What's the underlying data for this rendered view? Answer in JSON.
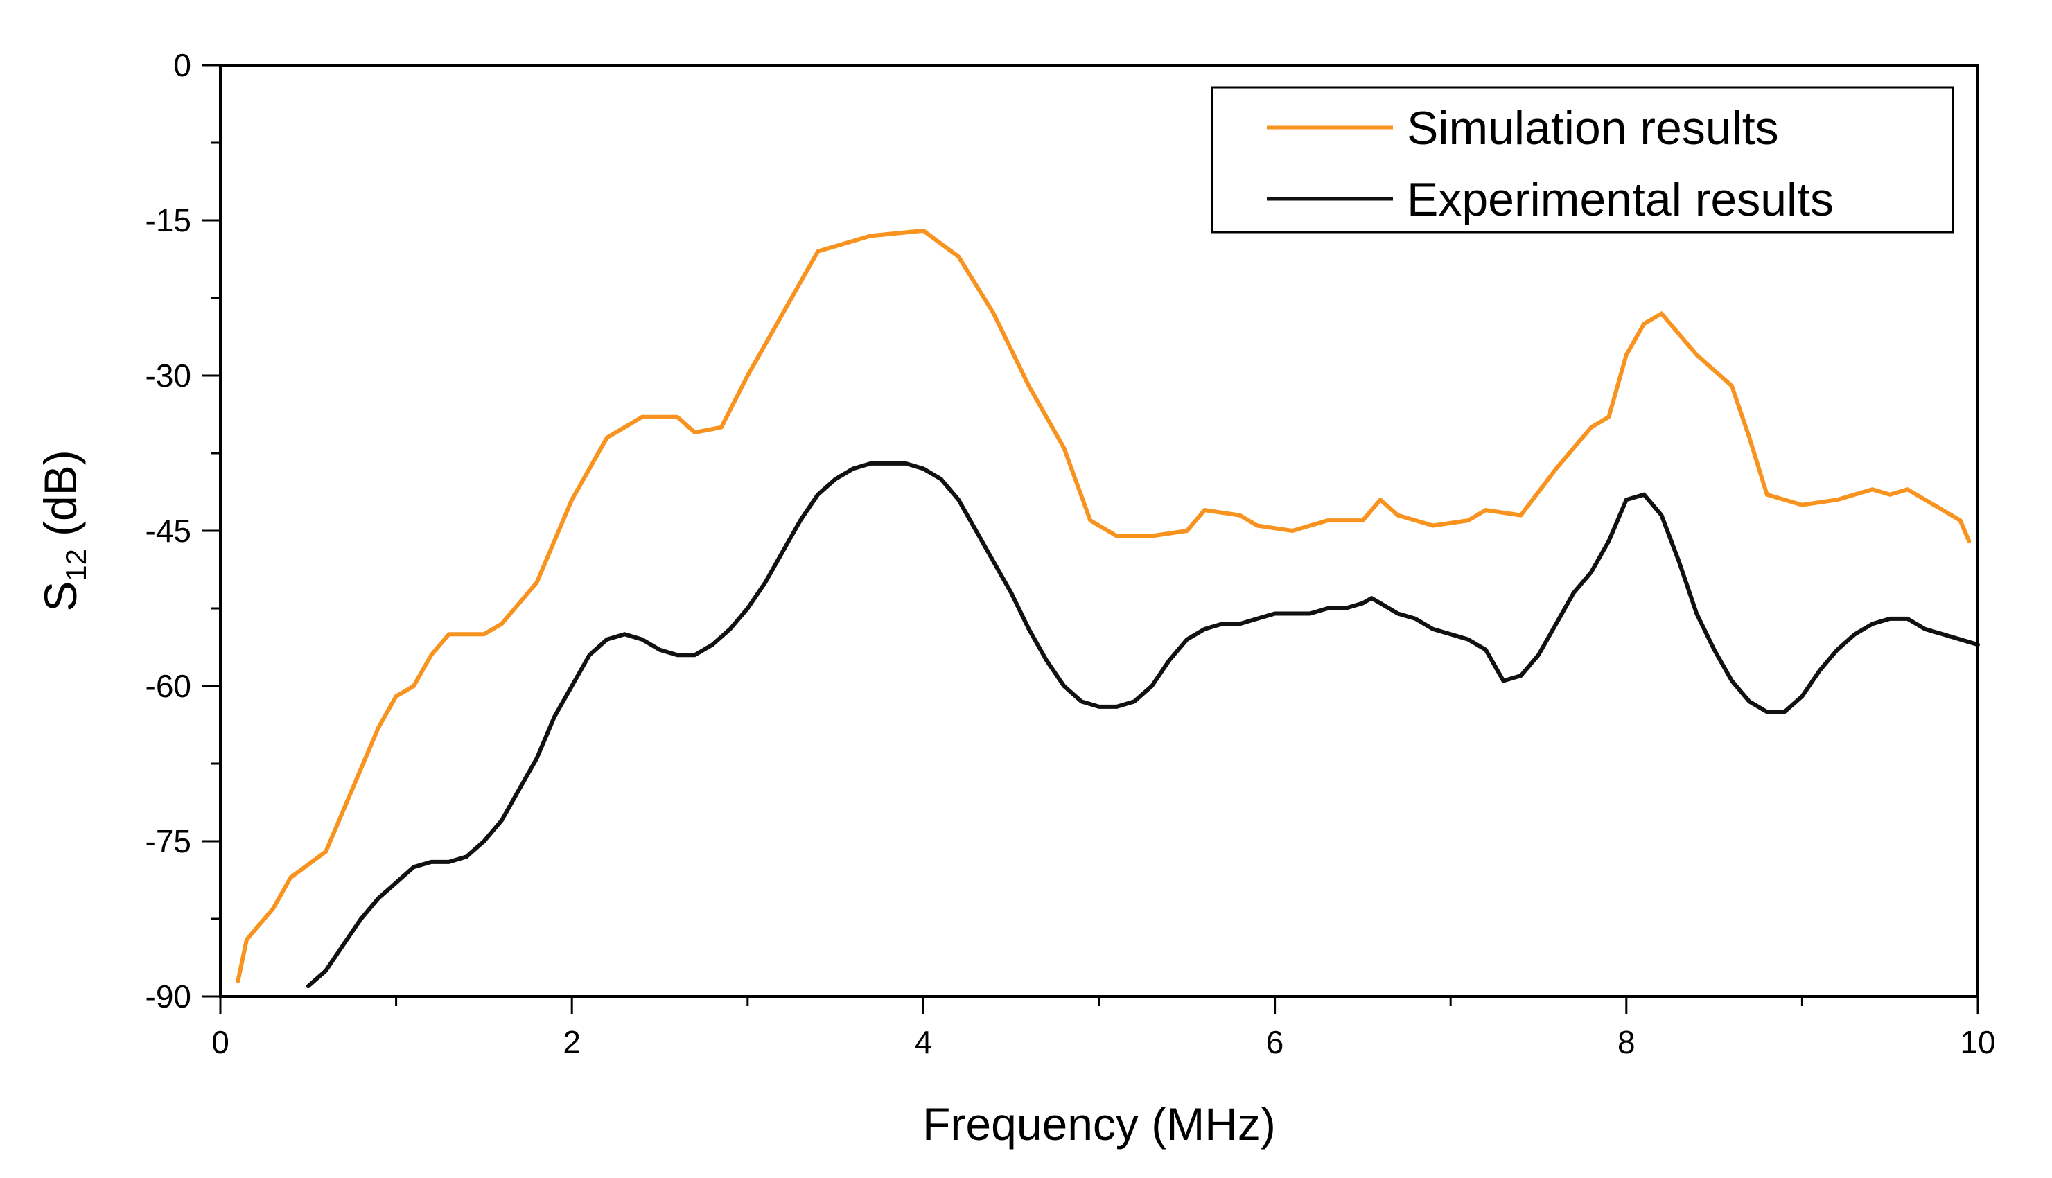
{
  "chart_data": {
    "type": "line",
    "title": "",
    "xlabel": "Frequency (MHz)",
    "ylabel": {
      "main": "S",
      "subscript": "12",
      "unit": "(dB)"
    },
    "xlim": [
      0,
      10
    ],
    "ylim": [
      -90,
      0
    ],
    "x_ticks": [
      0,
      2,
      4,
      6,
      8,
      10
    ],
    "x_tick_labels": [
      "0",
      "2",
      "4",
      "6",
      "8",
      "10"
    ],
    "y_ticks": [
      0,
      -15,
      -30,
      -45,
      -60,
      -75,
      -90
    ],
    "y_tick_labels": [
      "0",
      "-15",
      "-30",
      "-45",
      "-60",
      "-75",
      "-90"
    ],
    "x_minor_step": 1,
    "y_minor_step": 7.5,
    "grid": false,
    "legend_position": "top-right",
    "series": [
      {
        "name": "Simulation results",
        "color": "#F7931E",
        "x": [
          0.1,
          0.15,
          0.3,
          0.4,
          0.6,
          0.7,
          0.9,
          1.0,
          1.1,
          1.2,
          1.3,
          1.5,
          1.6,
          1.8,
          2.0,
          2.2,
          2.4,
          2.6,
          2.7,
          2.85,
          3.0,
          3.2,
          3.4,
          3.7,
          4.0,
          4.2,
          4.4,
          4.6,
          4.8,
          4.95,
          5.1,
          5.3,
          5.5,
          5.6,
          5.8,
          5.9,
          6.1,
          6.3,
          6.5,
          6.6,
          6.7,
          6.9,
          7.1,
          7.2,
          7.4,
          7.6,
          7.8,
          7.9,
          8.0,
          8.1,
          8.2,
          8.3,
          8.4,
          8.6,
          8.7,
          8.8,
          9.0,
          9.2,
          9.4,
          9.5,
          9.6,
          9.8,
          9.9,
          9.95
        ],
        "values": [
          -88.5,
          -84.5,
          -81.5,
          -78.5,
          -76,
          -72,
          -64,
          -61,
          -60,
          -57,
          -55,
          -55,
          -54,
          -50,
          -42,
          -36,
          -34,
          -34,
          -35.5,
          -35,
          -30,
          -24,
          -18,
          -16.5,
          -16,
          -18.5,
          -24,
          -31,
          -37,
          -44,
          -45.5,
          -45.5,
          -45,
          -43,
          -43.5,
          -44.5,
          -45,
          -44,
          -44,
          -42,
          -43.5,
          -44.5,
          -44,
          -43,
          -43.5,
          -39,
          -35,
          -34,
          -28,
          -25,
          -24,
          -26,
          -28,
          -31,
          -36,
          -41.5,
          -42.5,
          -42,
          -41,
          -41.5,
          -41,
          -43,
          -44,
          -46
        ]
      },
      {
        "name": "Experimental results",
        "color": "#111111",
        "x": [
          0.5,
          0.6,
          0.7,
          0.8,
          0.9,
          1.0,
          1.1,
          1.2,
          1.3,
          1.4,
          1.5,
          1.6,
          1.7,
          1.8,
          1.9,
          2.0,
          2.1,
          2.2,
          2.3,
          2.4,
          2.5,
          2.6,
          2.7,
          2.8,
          2.9,
          3.0,
          3.1,
          3.2,
          3.3,
          3.4,
          3.5,
          3.6,
          3.7,
          3.8,
          3.9,
          4.0,
          4.1,
          4.2,
          4.3,
          4.4,
          4.5,
          4.6,
          4.7,
          4.8,
          4.9,
          5.0,
          5.1,
          5.2,
          5.3,
          5.4,
          5.5,
          5.6,
          5.7,
          5.8,
          5.9,
          6.0,
          6.1,
          6.2,
          6.3,
          6.4,
          6.5,
          6.55,
          6.6,
          6.7,
          6.8,
          6.9,
          7.0,
          7.1,
          7.2,
          7.3,
          7.4,
          7.5,
          7.6,
          7.7,
          7.8,
          7.9,
          8.0,
          8.1,
          8.2,
          8.3,
          8.4,
          8.5,
          8.6,
          8.7,
          8.8,
          8.9,
          9.0,
          9.1,
          9.2,
          9.3,
          9.4,
          9.5,
          9.6,
          9.7,
          9.8,
          9.9,
          10.0
        ],
        "values": [
          -89,
          -87.5,
          -85,
          -82.5,
          -80.5,
          -79,
          -77.5,
          -77,
          -77,
          -76.5,
          -75,
          -73,
          -70,
          -67,
          -63,
          -60,
          -57,
          -55.5,
          -55,
          -55.5,
          -56.5,
          -57,
          -57,
          -56,
          -54.5,
          -52.5,
          -50,
          -47,
          -44,
          -41.5,
          -40,
          -39,
          -38.5,
          -38.5,
          -38.5,
          -39,
          -40,
          -42,
          -45,
          -48,
          -51,
          -54.5,
          -57.5,
          -60,
          -61.5,
          -62,
          -62,
          -61.5,
          -60,
          -57.5,
          -55.5,
          -54.5,
          -54,
          -54,
          -53.5,
          -53,
          -53,
          -53,
          -52.5,
          -52.5,
          -52,
          -51.5,
          -52,
          -53,
          -53.5,
          -54.5,
          -55,
          -55.5,
          -56.5,
          -59.5,
          -59,
          -57,
          -54,
          -51,
          -49,
          -46,
          -42,
          -41.5,
          -43.5,
          -48,
          -53,
          -56.5,
          -59.5,
          -61.5,
          -62.5,
          -62.5,
          -61,
          -58.5,
          -56.5,
          -55,
          -54,
          -53.5,
          -53.5,
          -54.5,
          -55,
          -55.5,
          -56
        ]
      }
    ]
  }
}
